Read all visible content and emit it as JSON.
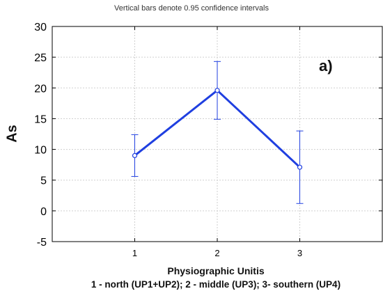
{
  "chart_data": {
    "type": "line",
    "note": "Vertical bars denote 0.95 confidence intervals",
    "panel_label": "a)",
    "ylabel": "As",
    "xlabel": "Physiographic Unitis",
    "x_legend": "1 - north (UP1+UP2); 2 - middle (UP3);  3- southern (UP4)",
    "ylim": [
      -5,
      30
    ],
    "xlim": [
      0,
      4
    ],
    "y_ticks": [
      -5,
      0,
      5,
      10,
      15,
      20,
      25,
      30
    ],
    "x_ticks": [
      1,
      2,
      3
    ],
    "grid": true,
    "color": "#1f3fe0",
    "points": [
      {
        "x": 1,
        "y": 9.0,
        "lower": 5.6,
        "upper": 12.4
      },
      {
        "x": 2,
        "y": 19.6,
        "lower": 14.9,
        "upper": 24.3
      },
      {
        "x": 3,
        "y": 7.1,
        "lower": 1.2,
        "upper": 13.0
      }
    ]
  }
}
